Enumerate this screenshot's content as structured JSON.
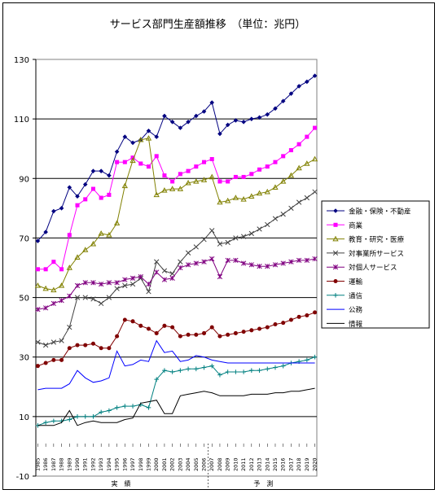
{
  "chart_data": {
    "type": "line",
    "title": "サービス部門生産額推移　（単位：兆円）",
    "ylim": [
      -10,
      130
    ],
    "yticks": [
      -10,
      10,
      30,
      50,
      70,
      90,
      110,
      130
    ],
    "grid": true,
    "legend_position": "right",
    "x": [
      "1985",
      "1986",
      "1987",
      "1988",
      "1989",
      "1990",
      "1991",
      "1992",
      "1993",
      "1994",
      "1995",
      "1996",
      "1997",
      "1998",
      "1999",
      "2000",
      "2001",
      "2002",
      "2003",
      "2004",
      "2005",
      "2006",
      "2007",
      "2008",
      "2009",
      "2010",
      "2011",
      "2012",
      "2013",
      "2014",
      "2015",
      "2016",
      "2017",
      "2018",
      "2019",
      "2020"
    ],
    "x_groups": [
      {
        "label": "実　績",
        "from": "1985",
        "to": "2006"
      },
      {
        "label": "予　測",
        "from": "2007",
        "to": "2020"
      }
    ],
    "series": [
      {
        "name": "金融・保険・不動産",
        "color": "#000080",
        "marker": "diamond",
        "values": [
          69,
          72,
          79,
          80,
          87,
          84,
          88,
          92.5,
          92.5,
          91,
          99,
          104,
          102,
          103,
          106,
          104,
          111,
          109,
          107,
          109,
          111,
          112.5,
          115.5,
          105,
          108,
          109.5,
          109,
          110,
          110.5,
          111.5,
          113.5,
          116,
          118.5,
          121,
          122.5,
          124.5
        ]
      },
      {
        "name": "商業",
        "color": "#ff00ff",
        "marker": "square",
        "values": [
          59.5,
          59.5,
          62,
          59.5,
          71,
          81,
          83,
          86.5,
          83.5,
          84.5,
          95.5,
          95.5,
          97,
          95,
          94,
          97.5,
          91,
          89,
          91.5,
          92.5,
          94,
          95.5,
          96.5,
          89,
          89,
          90.5,
          90.5,
          91.5,
          93,
          94,
          95.5,
          97.5,
          99.5,
          101.5,
          104,
          107
        ]
      },
      {
        "name": "教育・研究・医療",
        "color": "#808000",
        "marker": "triangle",
        "values": [
          54,
          53,
          52.5,
          54,
          60,
          63.5,
          66,
          68,
          71.5,
          71,
          75,
          87.5,
          96,
          103,
          103.5,
          84.5,
          86,
          86.5,
          86.5,
          88.5,
          89,
          89.5,
          90.5,
          82,
          82.5,
          83.5,
          83,
          84,
          85,
          85.5,
          87,
          89,
          91,
          93.5,
          95,
          96.5
        ]
      },
      {
        "name": "対事業所サービス",
        "color": "#404040",
        "marker": "x",
        "values": [
          35,
          34,
          35,
          35.5,
          40,
          50,
          50,
          49.5,
          48,
          50,
          53,
          54,
          54.5,
          56.5,
          52,
          62,
          59,
          58,
          62,
          65,
          67,
          69.5,
          72.5,
          68,
          68.5,
          70,
          70.5,
          71.5,
          73,
          74.5,
          76.5,
          78,
          80,
          82,
          83.5,
          85.5
        ]
      },
      {
        "name": "対個人サービス",
        "color": "#800080",
        "marker": "star",
        "values": [
          46,
          46.5,
          48,
          49,
          50.5,
          54,
          55,
          55,
          54.5,
          55,
          55,
          56,
          56.5,
          57,
          54.5,
          58.5,
          56,
          56.5,
          60,
          61,
          61.5,
          62,
          63,
          57,
          62.5,
          62.5,
          61.5,
          61,
          60.5,
          60.5,
          61,
          61.5,
          62,
          62.5,
          62.5,
          63
        ]
      },
      {
        "name": "運輸",
        "color": "#800000",
        "marker": "circle",
        "values": [
          27,
          28,
          29,
          29,
          33,
          34,
          34,
          34.5,
          33,
          33,
          37,
          42.5,
          42,
          40.5,
          39.5,
          38,
          40.5,
          40,
          37,
          37.5,
          37.5,
          38,
          40,
          37,
          37.5,
          38,
          38.5,
          39,
          39.5,
          40,
          41,
          41.5,
          42.5,
          43.5,
          44,
          45
        ]
      },
      {
        "name": "通信",
        "color": "#008080",
        "marker": "plus",
        "values": [
          7,
          8,
          8.5,
          8.5,
          9,
          10,
          10,
          10,
          11.5,
          12,
          13,
          13.5,
          13.5,
          14,
          13,
          22.5,
          25.5,
          25,
          25.5,
          26,
          26,
          26.5,
          27,
          24,
          25,
          25,
          25,
          25.5,
          25.5,
          26,
          26.5,
          27,
          28,
          28.5,
          29,
          30
        ]
      },
      {
        "name": "公務",
        "color": "#0000ff",
        "marker": "none",
        "values": [
          19,
          19.5,
          19.5,
          19.5,
          21,
          25.5,
          23,
          21.5,
          22,
          23,
          32,
          27,
          27.5,
          29,
          28.5,
          35.5,
          31.5,
          32,
          28.5,
          29,
          30.5,
          30,
          29,
          28.5,
          28,
          28,
          28,
          28,
          28,
          28,
          28,
          28,
          28,
          28,
          28,
          28
        ]
      },
      {
        "name": "情報",
        "color": "#000000",
        "marker": "none",
        "values": [
          7,
          7,
          7,
          8,
          12,
          7,
          8,
          8.5,
          8,
          8,
          8,
          9,
          9.5,
          14.5,
          15,
          15.5,
          11,
          11,
          17,
          17.5,
          18,
          18.5,
          18,
          17,
          17,
          17,
          17,
          17.5,
          17.5,
          17.5,
          18,
          18,
          18.5,
          18.5,
          19,
          19.5
        ]
      }
    ]
  }
}
